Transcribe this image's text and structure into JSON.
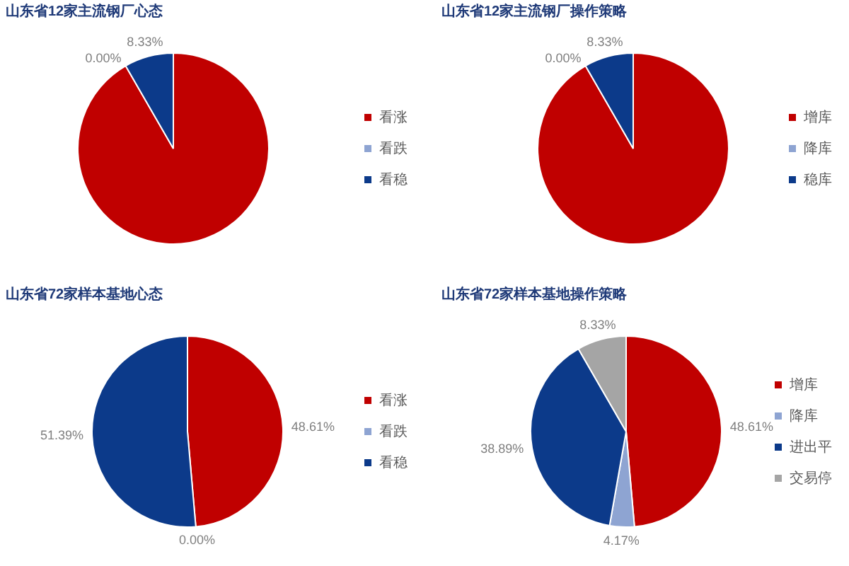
{
  "chart_data": [
    {
      "type": "pie",
      "title": "山东省12家主流钢厂心态",
      "categories": [
        "看涨",
        "看跌",
        "看稳"
      ],
      "values": [
        91.67,
        0,
        8.33
      ],
      "colors": [
        "#c00000",
        "#8ea4d2",
        "#0c3a8a"
      ],
      "value_labels": [
        null,
        "0.00%",
        "8.33%"
      ],
      "legend": "right"
    },
    {
      "type": "pie",
      "title": "山东省12家主流钢厂操作策略",
      "categories": [
        "增库",
        "降库",
        "稳库"
      ],
      "values": [
        91.67,
        0,
        8.33
      ],
      "colors": [
        "#c00000",
        "#8ea4d2",
        "#0c3a8a"
      ],
      "value_labels": [
        null,
        "0.00%",
        "8.33%"
      ],
      "legend": "right"
    },
    {
      "type": "pie",
      "title": "山东省72家样本基地心态",
      "categories": [
        "看涨",
        "看跌",
        "看稳"
      ],
      "values": [
        48.61,
        0,
        51.39
      ],
      "colors": [
        "#c00000",
        "#8ea4d2",
        "#0c3a8a"
      ],
      "value_labels": [
        "48.61%",
        "0.00%",
        "51.39%"
      ],
      "legend": "right"
    },
    {
      "type": "pie",
      "title": "山东省72家样本基地操作策略",
      "categories": [
        "增库",
        "降库",
        "进出平",
        "交易停"
      ],
      "values": [
        48.61,
        4.17,
        38.89,
        8.33
      ],
      "colors": [
        "#c00000",
        "#8ea4d2",
        "#0c3a8a",
        "#a5a5a5"
      ],
      "value_labels": [
        "48.61%",
        "4.17%",
        "38.89%",
        "8.33%"
      ],
      "legend": "right"
    }
  ]
}
